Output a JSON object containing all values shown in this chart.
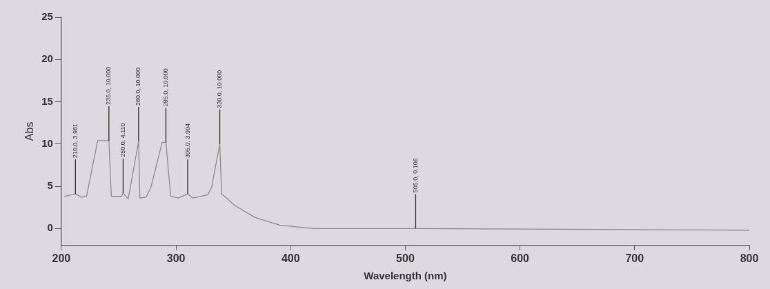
{
  "chart_data": {
    "type": "line",
    "xlabel": "Wavelength (nm)",
    "ylabel": "Abs",
    "x": [
      202.6,
      212.3,
      217.7,
      222,
      231.7,
      241.5,
      243.6,
      252.3,
      253.9,
      258.3,
      267.4,
      268.5,
      273.9,
      278.2,
      287.9,
      291.2,
      295.4,
      301.9,
      310.2,
      314.9,
      327.8,
      331.1,
      338.2,
      339.8,
      351.6,
      368.9,
      390.5,
      420,
      509,
      800
    ],
    "series": [
      {
        "color": "#8a8a8a",
        "values": [
          3.8,
          4.1,
          3.7,
          3.8,
          10.4,
          10.4,
          3.8,
          3.8,
          4.2,
          3.5,
          10.3,
          3.6,
          3.7,
          4.9,
          10.2,
          10.2,
          3.8,
          3.6,
          4.1,
          3.6,
          4.0,
          4.9,
          10.0,
          4.1,
          2.7,
          1.3,
          0.4,
          0.0,
          0.0,
          -0.2
        ]
      }
    ],
    "xlim": [
      200,
      800
    ],
    "xticks": [
      200,
      300,
      400,
      500,
      600,
      700,
      800
    ],
    "ylim": [
      -2,
      25
    ],
    "yticks": [
      0,
      5,
      10,
      15,
      20,
      25
    ],
    "marker": "none",
    "line_style": "solid",
    "legend": false,
    "annotations": [
      {
        "text": "210.0, 3.981",
        "x": 212.3,
        "y": 4.1
      },
      {
        "text": "235.0, 10.000",
        "x": 241.5,
        "y": 10.4
      },
      {
        "text": "250.0, 4.110",
        "x": 253.9,
        "y": 4.2
      },
      {
        "text": "260.0, 10.000",
        "x": 267.4,
        "y": 10.3
      },
      {
        "text": "285.0, 10.000",
        "x": 291.2,
        "y": 10.2
      },
      {
        "text": "305.0, 3.904",
        "x": 310.2,
        "y": 4.1
      },
      {
        "text": "330.0, 10.000",
        "x": 338.2,
        "y": 10.0
      },
      {
        "text": "505.0, 0.106",
        "x": 509,
        "y": 0.0
      }
    ]
  }
}
